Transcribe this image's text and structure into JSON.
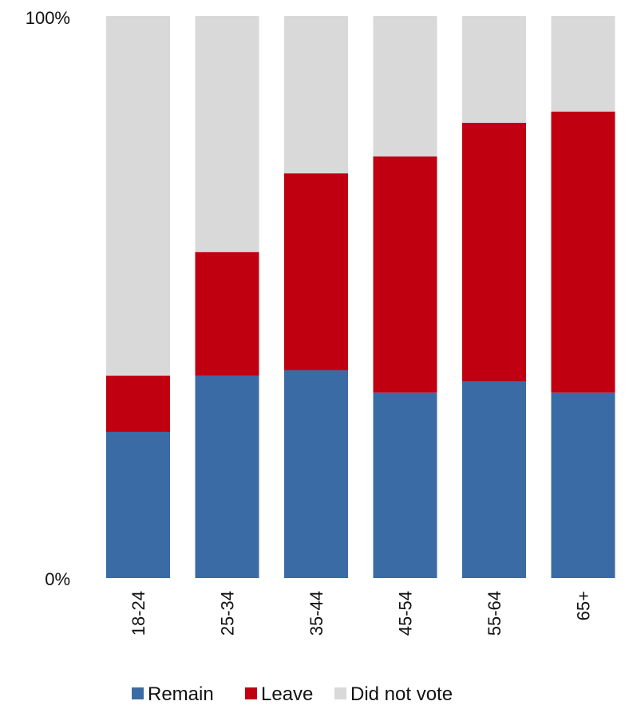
{
  "chart_data": {
    "type": "bar",
    "stacked": true,
    "categories": [
      "18-24",
      "25-34",
      "35-44",
      "45-54",
      "55-64",
      "65+"
    ],
    "series": [
      {
        "name": "Remain",
        "color": "#3b6ba5",
        "values": [
          26,
          36,
          37,
          33,
          35,
          33
        ]
      },
      {
        "name": "Leave",
        "color": "#c00010",
        "values": [
          10,
          22,
          35,
          42,
          46,
          50
        ]
      },
      {
        "name": "Did not vote",
        "color": "#d9d9d9",
        "values": [
          64,
          42,
          28,
          25,
          19,
          17
        ]
      }
    ],
    "yticks": [
      "0%",
      "100%"
    ],
    "ylim": [
      0,
      100
    ],
    "legend_position": "bottom",
    "grid": false
  }
}
